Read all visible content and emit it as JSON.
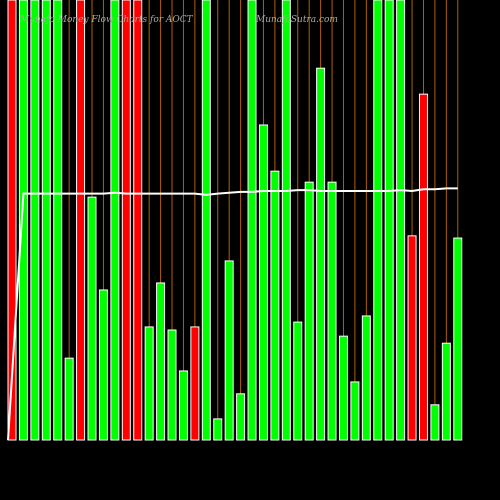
{
  "chart_data": {
    "type": "bar",
    "title": "Munafa Money Flow Charts for AOCT",
    "subtitle": "MunafaSutra.com",
    "categories": [
      null,
      null,
      null,
      null,
      null,
      null,
      null,
      null,
      null,
      null,
      null,
      null,
      null,
      null,
      null,
      null,
      null,
      null,
      null,
      null,
      null,
      null,
      null,
      null,
      null,
      null,
      null,
      null,
      null,
      null,
      null,
      null,
      null,
      null,
      null,
      null,
      null,
      null,
      null,
      null
    ],
    "values": [
      100,
      100,
      100,
      100,
      100,
      18.6,
      100,
      55.2,
      34.1,
      100,
      100,
      100,
      25.7,
      35.7,
      25,
      15.7,
      25.7,
      100,
      4.8,
      40.7,
      10.5,
      100,
      71.6,
      61.1,
      100,
      26.8,
      58.6,
      84.5,
      58.6,
      23.6,
      13.2,
      28.2,
      100,
      100,
      100,
      46.4,
      78.6,
      8,
      22,
      45.9
    ],
    "colors": [
      "#ff0000",
      "#00ff00",
      "#00ff00",
      "#00ff00",
      "#00ff00",
      "#00ff00",
      "#ff0000",
      "#00ff00",
      "#00ff00",
      "#00ff00",
      "#ff0000",
      "#ff0000",
      "#00ff00",
      "#00ff00",
      "#00ff00",
      "#00ff00",
      "#ff0000",
      "#00ff00",
      "#00ff00",
      "#00ff00",
      "#00ff00",
      "#00ff00",
      "#00ff00",
      "#00ff00",
      "#00ff00",
      "#00ff00",
      "#00ff00",
      "#00ff00",
      "#00ff00",
      "#00ff00",
      "#00ff00",
      "#00ff00",
      "#00ff00",
      "#00ff00",
      "#00ff00",
      "#ff0000",
      "#ff0000",
      "#00ff00",
      "#00ff00",
      "#00ff00"
    ],
    "line": {
      "color": "#ffffff",
      "values": [
        0,
        56,
        56,
        56,
        56,
        56,
        56,
        56,
        56,
        56.2,
        56,
        56,
        56,
        56,
        56,
        56,
        56,
        55.7,
        56,
        56.2,
        56.4,
        56.4,
        56.6,
        56.6,
        56.6,
        56.8,
        56.8,
        56.6,
        56.6,
        56.6,
        56.6,
        56.6,
        56.6,
        56.6,
        56.8,
        56.6,
        57,
        57,
        57.2,
        57.2
      ]
    },
    "ylim": [
      0,
      100
    ]
  }
}
